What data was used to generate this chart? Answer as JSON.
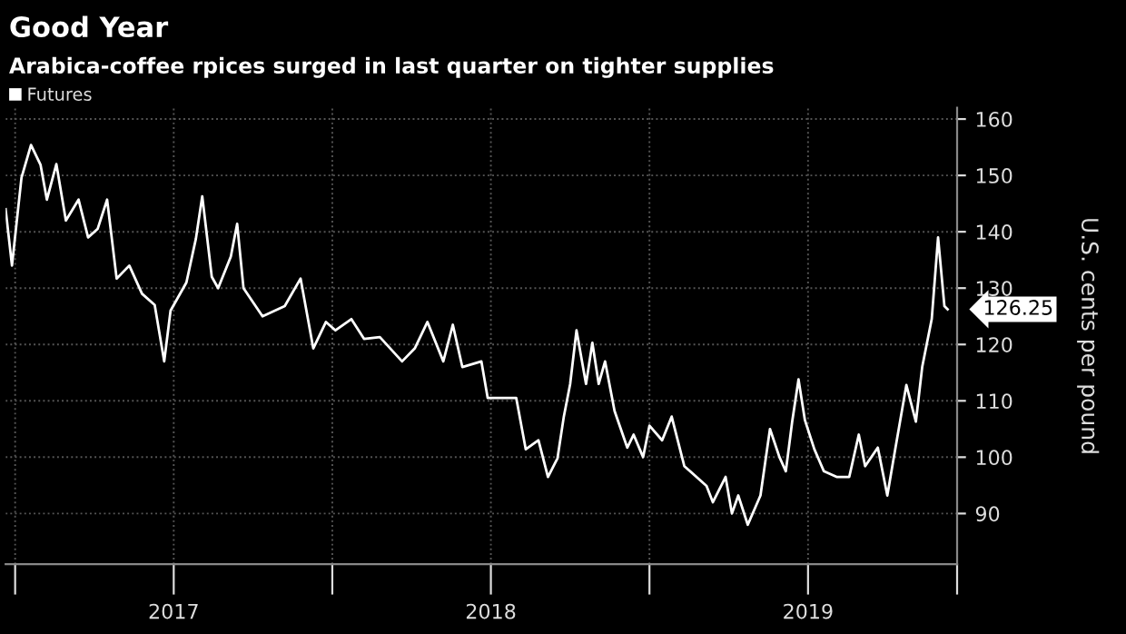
{
  "chart_data": {
    "type": "line",
    "title": "Good Year",
    "subtitle": "Arabica-coffee rpices surged in last quarter on tighter supplies",
    "ylabel": "U.S. cents per pound",
    "x": [
      2016.97,
      2016.99,
      2017.02,
      2017.05,
      2017.08,
      2017.1,
      2017.13,
      2017.16,
      2017.2,
      2017.23,
      2017.26,
      2017.29,
      2017.32,
      2017.36,
      2017.4,
      2017.44,
      2017.47,
      2017.49,
      2017.54,
      2017.57,
      2017.59,
      2017.62,
      2017.64,
      2017.68,
      2017.7,
      2017.72,
      2017.78,
      2017.85,
      2017.9,
      2017.94,
      2017.98,
      2018.01,
      2018.06,
      2018.1,
      2018.15,
      2018.22,
      2018.26,
      2018.3,
      2018.35,
      2018.38,
      2018.41,
      2018.47,
      2018.49,
      2018.55,
      2018.58,
      2018.61,
      2018.65,
      2018.68,
      2018.71,
      2018.73,
      2018.75,
      2018.77,
      2018.8,
      2018.82,
      2018.84,
      2018.86,
      2018.89,
      2018.93,
      2018.95,
      2018.98,
      2019.0,
      2019.04,
      2019.07,
      2019.11,
      2019.18,
      2019.2,
      2019.24,
      2019.26,
      2019.28,
      2019.31,
      2019.35,
      2019.38,
      2019.41,
      2019.43,
      2019.45,
      2019.47,
      2019.49,
      2019.52,
      2019.55,
      2019.59,
      2019.63,
      2019.66,
      2019.68,
      2019.72,
      2019.75,
      2019.77,
      2019.81,
      2019.84,
      2019.86,
      2019.89,
      2019.91,
      2019.93,
      2019.94
    ],
    "series": [
      {
        "name": "Futures",
        "color": "#ffffff",
        "values": [
          144,
          134,
          149.6,
          155.4,
          151.9,
          145.7,
          152,
          142,
          145.7,
          139,
          140.5,
          145.7,
          131.7,
          134,
          129,
          127,
          117,
          126,
          131,
          138.8,
          146.3,
          132,
          130,
          135.6,
          141.4,
          130,
          125,
          126.8,
          131.7,
          119.3,
          124,
          122.5,
          124.5,
          121,
          121.3,
          117,
          119.3,
          124,
          117,
          123.5,
          116,
          117,
          110.5,
          110.5,
          110.5,
          101.4,
          103,
          96.5,
          99.8,
          107.2,
          113,
          122.5,
          113,
          120.3,
          113,
          117,
          108.2,
          101.7,
          104,
          100,
          105.6,
          103,
          107.2,
          98.4,
          94.9,
          92,
          96.5,
          90,
          93.2,
          88,
          93.2,
          105,
          100,
          97.5,
          106.3,
          113.8,
          106.6,
          101.4,
          97.5,
          96.5,
          96.5,
          104,
          98.4,
          101.7,
          93.2,
          99.8,
          112.8,
          106.3,
          116,
          124.5,
          139,
          126.8,
          126.25
        ]
      }
    ],
    "annotations": [
      {
        "text": "126.25",
        "x": 2019.94,
        "y": 126.25
      }
    ],
    "xlim": [
      2016.97,
      2019.97
    ],
    "ylim": [
      81,
      162
    ],
    "xticks": [
      {
        "value": 2017,
        "label": null
      },
      {
        "value": 2017.5,
        "label": "2017"
      },
      {
        "value": 2018,
        "label": null
      },
      {
        "value": 2018.5,
        "label": "2018"
      },
      {
        "value": 2019,
        "label": null
      },
      {
        "value": 2019.5,
        "label": "2019"
      },
      {
        "value": 2019.97,
        "label": null
      }
    ],
    "yticks": [
      90,
      100,
      110,
      120,
      130,
      140,
      150,
      160
    ],
    "grid": true,
    "legend": "top left",
    "line_style": "solid",
    "marker": "none"
  }
}
